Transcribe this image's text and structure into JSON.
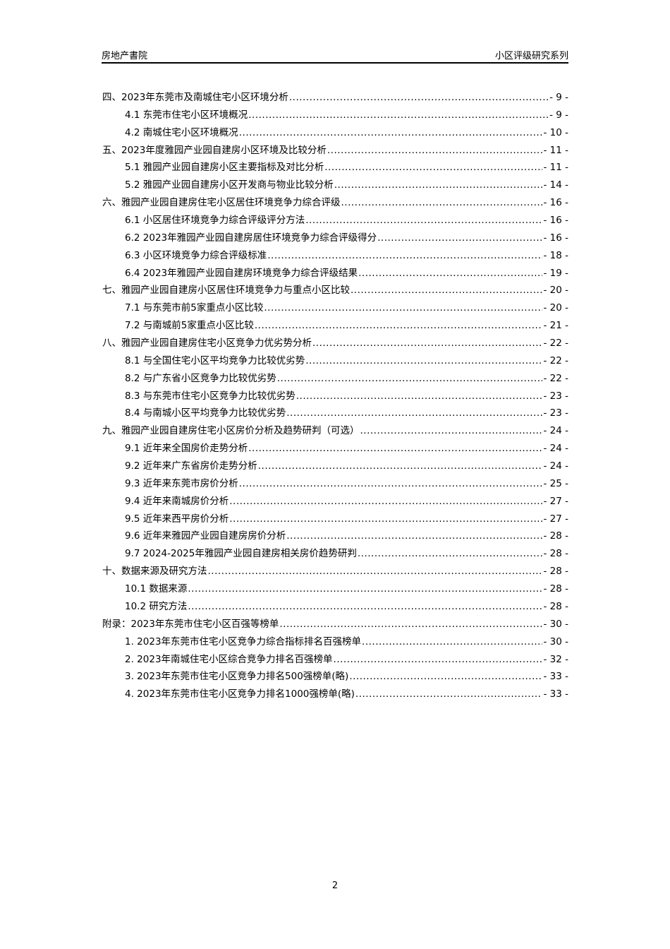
{
  "header": {
    "left": "房地产書院",
    "right": "小区评级研究系列"
  },
  "toc": [
    {
      "level": 1,
      "title": "四、2023年东莞市及南城住宅小区环境分析",
      "page": "- 9 -"
    },
    {
      "level": 2,
      "title": "4.1 东莞市住宅小区环境概况",
      "page": "- 9 -"
    },
    {
      "level": 2,
      "title": "4.2 南城住宅小区环境概况",
      "page": "- 10 -"
    },
    {
      "level": 1,
      "title": "五、2023年度雅园产业园自建房小区环境及比较分析",
      "page": "- 11 -"
    },
    {
      "level": 2,
      "title": "5.1 雅园产业园自建房小区主要指标及对比分析",
      "page": "- 11 -"
    },
    {
      "level": 2,
      "title": "5.2 雅园产业园自建房小区开发商与物业比较分析",
      "page": "- 14 -"
    },
    {
      "level": 1,
      "title": "六、雅园产业园自建房住宅小区居住环境竞争力综合评级",
      "page": "- 16 -"
    },
    {
      "level": 2,
      "title": "6.1 小区居住环境竞争力综合评级评分方法",
      "page": "- 16 -"
    },
    {
      "level": 2,
      "title": "6.2 2023年雅园产业园自建房居住环境竞争力综合评级得分",
      "page": "- 16 -"
    },
    {
      "level": 2,
      "title": "6.3 小区环境竞争力综合评级标准",
      "page": "- 18 -"
    },
    {
      "level": 2,
      "title": "6.4 2023年雅园产业园自建房环境竞争力综合评级结果",
      "page": "- 19 -"
    },
    {
      "level": 1,
      "title": "七、雅园产业园自建房小区居住环境竞争力与重点小区比较",
      "page": "- 20 -"
    },
    {
      "level": 2,
      "title": "7.1 与东莞市前5家重点小区比较",
      "page": "- 20 -"
    },
    {
      "level": 2,
      "title": "7.2 与南城前5家重点小区比较",
      "page": "- 21 -"
    },
    {
      "level": 1,
      "title": "八、雅园产业园自建房住宅小区竞争力优劣势分析",
      "page": "- 22 -"
    },
    {
      "level": 2,
      "title": "8.1 与全国住宅小区平均竞争力比较优劣势",
      "page": "- 22 -"
    },
    {
      "level": 2,
      "title": "8.2 与广东省小区竞争力比较优劣势",
      "page": "- 22 -"
    },
    {
      "level": 2,
      "title": "8.3 与东莞市住宅小区竞争力比较优劣势",
      "page": "- 23 -"
    },
    {
      "level": 2,
      "title": "8.4 与南城小区平均竞争力比较优劣势",
      "page": "- 23 -"
    },
    {
      "level": 1,
      "title": "九、雅园产业园自建房住宅小区房价分析及趋势研判（可选）",
      "page": "- 24 -"
    },
    {
      "level": 2,
      "title": "9.1 近年来全国房价走势分析",
      "page": "- 24 -"
    },
    {
      "level": 2,
      "title": "9.2 近年来广东省房价走势分析",
      "page": "- 24 -"
    },
    {
      "level": 2,
      "title": "9.3 近年来东莞市房价分析",
      "page": "- 25 -"
    },
    {
      "level": 2,
      "title": "9.4 近年来南城房价分析",
      "page": "- 27 -"
    },
    {
      "level": 2,
      "title": "9.5 近年来西平房价分析",
      "page": "- 27 -"
    },
    {
      "level": 2,
      "title": "9.6 近年来雅园产业园自建房房价分析",
      "page": "- 28 -"
    },
    {
      "level": 2,
      "title": "9.7 2024-2025年雅园产业园自建房相关房价趋势研判",
      "page": "- 28 -"
    },
    {
      "level": 1,
      "title": "十、数据来源及研究方法",
      "page": "- 28 -"
    },
    {
      "level": 2,
      "title": "10.1 数据来源",
      "page": "- 28 -"
    },
    {
      "level": 2,
      "title": "10.2 研究方法",
      "page": "- 28 -"
    },
    {
      "level": 1,
      "title": "附录：2023年东莞市住宅小区百强等榜单",
      "page": "- 30 -"
    },
    {
      "level": 2,
      "title": "1.  2023年东莞市住宅小区竞争力综合指标排名百强榜单",
      "page": "- 30 -"
    },
    {
      "level": 2,
      "title": "2.  2023年南城住宅小区综合竞争力排名百强榜单",
      "page": "- 32 -"
    },
    {
      "level": 2,
      "title": "3.  2023年东莞市住宅小区竞争力排名500强榜单(略)",
      "page": "- 33 -"
    },
    {
      "level": 2,
      "title": "4.  2023年东莞市住宅小区竞争力排名1000强榜单(略)",
      "page": "- 33 -"
    }
  ],
  "footer": {
    "page_number": "2"
  }
}
